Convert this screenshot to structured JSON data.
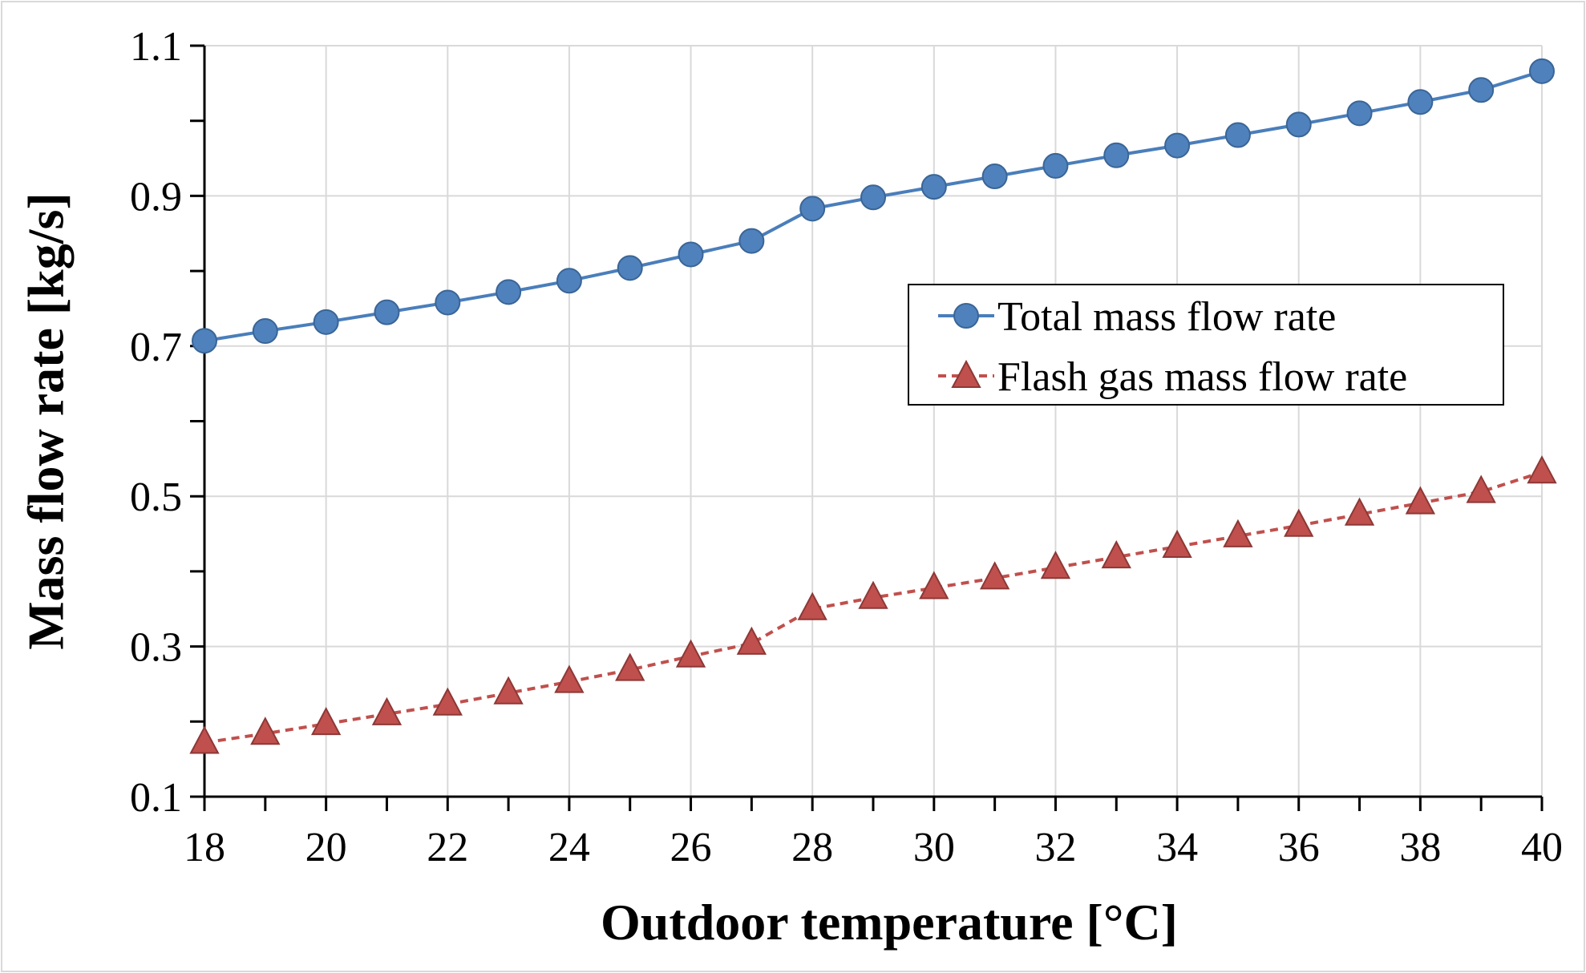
{
  "chart_data": {
    "type": "line",
    "title": "",
    "xlabel": "Outdoor temperature [°C]",
    "ylabel": "Mass flow rate [kg/s]",
    "xlim": [
      18,
      40
    ],
    "ylim": [
      0.1,
      1.1
    ],
    "x_ticks": [
      18,
      20,
      22,
      24,
      26,
      28,
      30,
      32,
      34,
      36,
      38,
      40
    ],
    "y_ticks": [
      0.1,
      0.3,
      0.5,
      0.7,
      0.9,
      1.1
    ],
    "x_tick_labels": [
      "18",
      "20",
      "22",
      "24",
      "26",
      "28",
      "30",
      "32",
      "34",
      "36",
      "38",
      "40"
    ],
    "y_tick_labels": [
      "0.1",
      "0.3",
      "0.5",
      "0.7",
      "0.9",
      "1.1"
    ],
    "grid": true,
    "legend_position": "center-right",
    "x": [
      18,
      19,
      20,
      21,
      22,
      23,
      24,
      25,
      26,
      27,
      28,
      29,
      30,
      31,
      32,
      33,
      34,
      35,
      36,
      37,
      38,
      39,
      40
    ],
    "series": [
      {
        "name": "Total mass flow rate",
        "color": "#4a7ebb",
        "marker": "circle",
        "line_style": "solid",
        "values": [
          0.707,
          0.72,
          0.732,
          0.745,
          0.758,
          0.772,
          0.787,
          0.804,
          0.822,
          0.84,
          0.883,
          0.898,
          0.912,
          0.926,
          0.94,
          0.954,
          0.967,
          0.981,
          0.995,
          1.01,
          1.025,
          1.041,
          1.066
        ]
      },
      {
        "name": "Flash gas mass flow rate",
        "color": "#c0504d",
        "marker": "triangle",
        "line_style": "dashed",
        "values": [
          0.172,
          0.184,
          0.197,
          0.21,
          0.223,
          0.238,
          0.253,
          0.269,
          0.287,
          0.304,
          0.35,
          0.365,
          0.378,
          0.391,
          0.405,
          0.419,
          0.433,
          0.447,
          0.461,
          0.476,
          0.491,
          0.506,
          0.532
        ]
      }
    ]
  }
}
